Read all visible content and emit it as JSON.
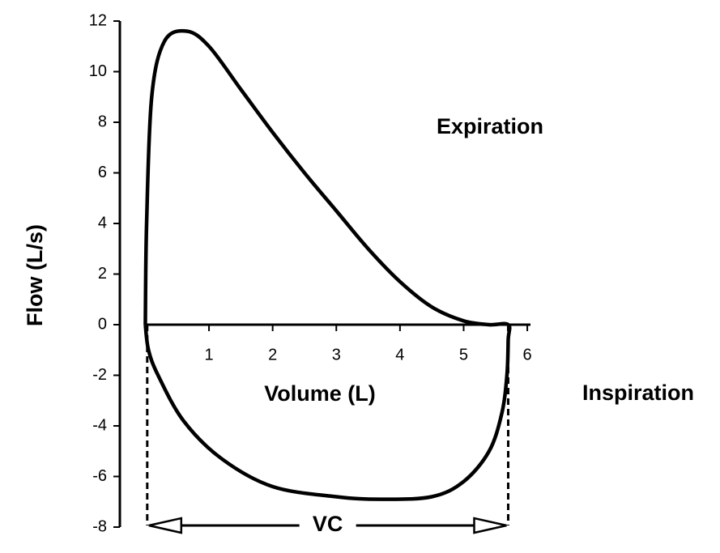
{
  "chart_data": {
    "type": "line",
    "x_label": "Volume (L)",
    "y_label": "Flow (L/s)",
    "annotations": [
      "Expiration",
      "Inspiration"
    ],
    "vc": {
      "label": "VC",
      "from": 0.03,
      "to": 5.7
    },
    "series": [
      {
        "color": "#000000",
        "x": [
          0,
          0.02,
          0.1,
          0.3,
          0.65,
          1,
          1.5,
          2,
          2.5,
          3,
          3.5,
          4,
          4.5,
          5,
          5.4,
          5.7,
          5.7,
          5.68,
          5.6,
          5.4,
          5,
          4.5,
          3.7,
          3,
          2,
          1.2,
          0.6,
          0.2,
          0.05,
          0
        ],
        "values": [
          0,
          4,
          9,
          11.2,
          11.6,
          11,
          9.3,
          7.6,
          6.0,
          4.5,
          3.0,
          1.7,
          0.7,
          0.15,
          0,
          0,
          -0.6,
          -2,
          -3.5,
          -5,
          -6.2,
          -6.8,
          -6.9,
          -6.8,
          -6.4,
          -5.3,
          -3.8,
          -2,
          -1,
          0
        ]
      }
    ],
    "xlim": [
      -0.4,
      6.05
    ],
    "ylim": [
      -8,
      12
    ],
    "xticks": [
      1,
      2,
      3,
      4,
      5,
      6
    ],
    "yticks": [
      -8,
      -6,
      -4,
      -2,
      0,
      2,
      4,
      6,
      8,
      10,
      12
    ]
  }
}
